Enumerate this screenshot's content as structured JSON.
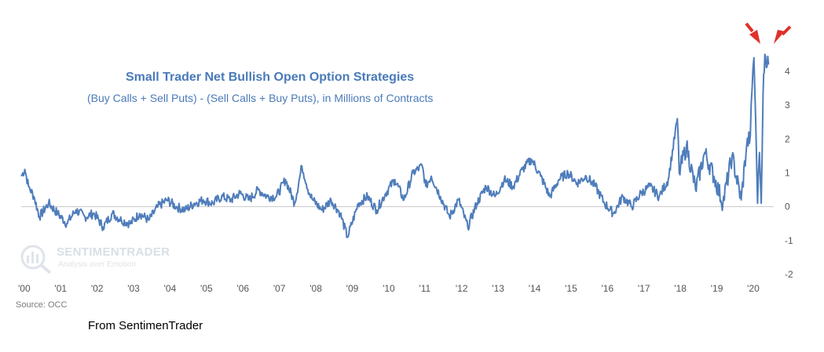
{
  "chart_data": {
    "type": "line",
    "title": "Small Trader Net Bullish Open Option Strategies",
    "subtitle": "(Buy Calls + Sell Puts) - (Sell Calls + Buy Puts), in Millions of Contracts",
    "x_tick_labels": [
      "'00",
      "'01",
      "'02",
      "'03",
      "'04",
      "'05",
      "'06",
      "'07",
      "'08",
      "'09",
      "'10",
      "'11",
      "'12",
      "'13",
      "'14",
      "'15",
      "'16",
      "'17",
      "'18",
      "'19",
      "'20"
    ],
    "y_tick_labels": [
      "4",
      "3",
      "2",
      "1",
      "0",
      "-1",
      "-2"
    ],
    "ylim": [
      -2,
      4.6
    ],
    "xlim": [
      2000.0,
      2020.6
    ],
    "grid": false,
    "zero_line": true,
    "line_color": "#4f7dbb",
    "series": [
      {
        "x": [
          2000.0,
          2000.1,
          2000.2,
          2000.35,
          2000.5,
          2000.75,
          2001.0,
          2001.25,
          2001.5,
          2001.75,
          2002.0,
          2002.25,
          2002.5,
          2002.75,
          2003.0,
          2003.25,
          2003.5,
          2003.75,
          2004.0,
          2004.25,
          2004.5,
          2004.75,
          2005.0,
          2005.25,
          2005.5,
          2005.75,
          2006.0,
          2006.25,
          2006.5,
          2006.75,
          2007.0,
          2007.25,
          2007.5,
          2007.7,
          2007.9,
          2008.0,
          2008.25,
          2008.5,
          2008.75,
          2008.95,
          2009.25,
          2009.5,
          2009.75,
          2010.0,
          2010.25,
          2010.5,
          2010.75,
          2011.0,
          2011.1,
          2011.25,
          2011.5,
          2011.75,
          2012.0,
          2012.25,
          2012.5,
          2012.75,
          2013.0,
          2013.25,
          2013.5,
          2013.75,
          2014.0,
          2014.25,
          2014.5,
          2014.75,
          2015.0,
          2015.25,
          2015.5,
          2015.75,
          2016.0,
          2016.25,
          2016.5,
          2016.75,
          2017.0,
          2017.25,
          2017.5,
          2017.75,
          2018.0,
          2018.05,
          2018.25,
          2018.5,
          2018.75,
          2019.0,
          2019.25,
          2019.5,
          2019.75,
          2019.9,
          2020.0,
          2020.05,
          2020.1,
          2020.15,
          2020.2,
          2020.25,
          2020.3,
          2020.35,
          2020.4,
          2020.5
        ],
        "values": [
          0.9,
          1.1,
          0.6,
          0.3,
          -0.3,
          0.1,
          -0.2,
          -0.5,
          -0.1,
          -0.3,
          -0.2,
          -0.6,
          -0.2,
          -0.4,
          -0.5,
          -0.2,
          -0.4,
          0.0,
          0.2,
          0.0,
          -0.1,
          0.1,
          0.2,
          0.1,
          0.3,
          0.2,
          0.4,
          0.2,
          0.5,
          0.3,
          0.3,
          0.8,
          0.1,
          1.2,
          0.4,
          0.2,
          -0.1,
          0.2,
          -0.2,
          -0.9,
          0.1,
          0.3,
          -0.1,
          0.4,
          0.8,
          0.2,
          1.0,
          1.2,
          0.6,
          0.9,
          0.3,
          -0.3,
          0.2,
          -0.6,
          0.1,
          0.6,
          0.3,
          0.8,
          0.6,
          1.1,
          1.4,
          0.9,
          0.3,
          0.8,
          1.0,
          0.7,
          0.9,
          0.6,
          0.1,
          -0.2,
          0.3,
          0.0,
          0.4,
          0.6,
          0.3,
          0.8,
          2.6,
          1.0,
          1.8,
          0.5,
          1.6,
          0.9,
          0.1,
          1.5,
          0.2,
          1.8,
          2.1,
          3.5,
          4.4,
          2.5,
          0.1,
          1.6,
          0.1,
          3.3,
          4.5,
          4.2
        ]
      }
    ]
  },
  "watermark": {
    "name": "SENTIMENTRADER",
    "tagline": "Analysis over Emotion"
  },
  "source": "Source: OCC",
  "credit": "From SentimenTrader",
  "annotations": {
    "arrow_color": "#e0302a"
  }
}
